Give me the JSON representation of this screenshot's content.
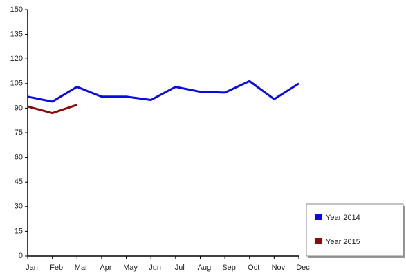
{
  "chart_data": {
    "type": "line",
    "categories": [
      "Jan",
      "Feb",
      "Mar",
      "Apr",
      "May",
      "Jun",
      "Jul",
      "Aug",
      "Sep",
      "Oct",
      "Nov",
      "Dec"
    ],
    "series": [
      {
        "name": "Year 2014",
        "color": "#0a0ae6",
        "values": [
          97,
          94,
          103,
          97,
          97,
          95,
          103,
          100,
          99.5,
          106.5,
          95.5,
          105
        ]
      },
      {
        "name": "Year 2015",
        "color": "#8b0a0a",
        "values": [
          91,
          87,
          92,
          null,
          null,
          null,
          null,
          null,
          null,
          null,
          null,
          null
        ]
      }
    ],
    "ylim": [
      0,
      150
    ],
    "yticks": [
      0,
      15,
      30,
      45,
      60,
      75,
      90,
      105,
      120,
      135,
      150
    ],
    "legend": "lower right"
  }
}
